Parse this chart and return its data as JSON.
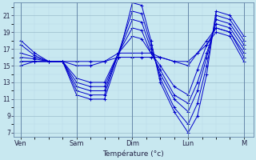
{
  "xlabel": "Température (°c)",
  "background_color": "#c8e8f0",
  "grid_color_major": "#9bbccc",
  "grid_color_minor": "#b8d8e8",
  "line_color": "#0000cc",
  "ylim": [
    6.5,
    22.5
  ],
  "yticks": [
    7,
    9,
    11,
    13,
    15,
    17,
    19,
    21
  ],
  "day_labels": [
    "Ven",
    "Sam",
    "Dim",
    "Lun",
    "M"
  ],
  "day_positions": [
    0,
    24,
    48,
    72,
    96
  ],
  "series": [
    {
      "x": [
        0,
        6,
        12,
        18,
        24,
        30,
        36,
        42,
        48,
        52,
        56,
        60,
        66,
        72,
        76,
        80,
        84,
        90,
        96
      ],
      "y": [
        18.0,
        16.5,
        15.5,
        15.5,
        11.5,
        11.0,
        11.0,
        16.0,
        22.5,
        22.2,
        18.0,
        13.0,
        9.5,
        7.0,
        9.0,
        14.0,
        21.5,
        21.0,
        18.5
      ]
    },
    {
      "x": [
        0,
        6,
        12,
        18,
        24,
        30,
        36,
        42,
        48,
        52,
        56,
        60,
        66,
        72,
        76,
        80,
        84,
        90,
        96
      ],
      "y": [
        17.5,
        16.2,
        15.5,
        15.5,
        12.0,
        11.5,
        11.5,
        16.5,
        21.5,
        21.2,
        17.5,
        13.5,
        10.0,
        8.0,
        10.5,
        15.0,
        21.0,
        20.5,
        18.0
      ]
    },
    {
      "x": [
        0,
        6,
        12,
        18,
        24,
        30,
        36,
        42,
        48,
        52,
        56,
        60,
        66,
        72,
        76,
        80,
        84,
        90,
        96
      ],
      "y": [
        16.5,
        16.0,
        15.5,
        15.5,
        12.5,
        12.0,
        12.0,
        16.5,
        20.5,
        20.2,
        17.0,
        14.0,
        11.0,
        9.5,
        12.0,
        16.0,
        20.5,
        20.0,
        17.5
      ]
    },
    {
      "x": [
        0,
        6,
        12,
        18,
        24,
        30,
        36,
        42,
        48,
        52,
        56,
        60,
        66,
        72,
        76,
        80,
        84,
        90,
        96
      ],
      "y": [
        16.0,
        15.8,
        15.5,
        15.5,
        13.0,
        12.5,
        12.5,
        16.5,
        19.5,
        19.2,
        16.5,
        14.5,
        11.5,
        10.5,
        13.0,
        16.5,
        20.0,
        19.5,
        17.0
      ]
    },
    {
      "x": [
        0,
        6,
        12,
        18,
        24,
        30,
        36,
        42,
        48,
        52,
        56,
        60,
        66,
        72,
        76,
        80,
        84,
        90,
        96
      ],
      "y": [
        15.5,
        15.5,
        15.5,
        15.5,
        13.5,
        13.0,
        13.0,
        16.5,
        18.5,
        18.2,
        16.5,
        15.0,
        12.5,
        11.5,
        14.5,
        17.5,
        19.5,
        19.0,
        16.5
      ]
    },
    {
      "x": [
        0,
        6,
        12,
        18,
        24,
        30,
        36,
        42,
        48,
        52,
        56,
        60,
        66,
        72,
        76,
        80,
        84,
        90,
        96
      ],
      "y": [
        15.5,
        15.5,
        15.5,
        15.5,
        15.0,
        15.0,
        15.5,
        16.5,
        16.5,
        16.5,
        16.5,
        16.0,
        15.5,
        15.5,
        16.5,
        18.0,
        19.5,
        19.0,
        16.0
      ]
    },
    {
      "x": [
        0,
        6,
        12,
        18,
        24,
        30,
        36,
        42,
        48,
        52,
        56,
        60,
        66,
        72,
        76,
        80,
        84,
        90,
        96
      ],
      "y": [
        15.0,
        15.5,
        15.5,
        15.5,
        15.5,
        15.5,
        15.5,
        16.0,
        16.0,
        16.0,
        16.0,
        16.0,
        15.5,
        15.0,
        16.5,
        17.5,
        19.0,
        18.5,
        15.5
      ]
    }
  ]
}
